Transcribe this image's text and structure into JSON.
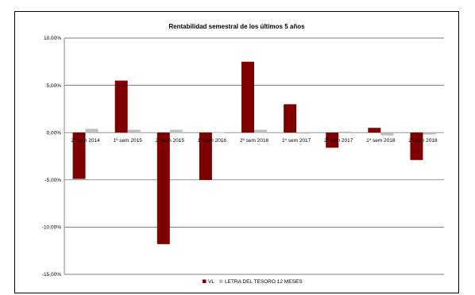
{
  "chart_data": {
    "type": "bar",
    "title": "Rentabilidad semestral de los últimos 5 años",
    "xlabel": "",
    "ylabel": "",
    "ylim": [
      -15,
      10
    ],
    "yticks": [
      10,
      5,
      0,
      -5,
      -10,
      -15
    ],
    "ytick_labels": [
      "10,00%",
      "5,00%",
      "0,00%",
      "-5,00%",
      "-10,00%",
      "-15,00%"
    ],
    "grid": true,
    "legend_position": "bottom",
    "categories": [
      "2º sem 2014",
      "1º sem 2015",
      "2º sem 2015",
      "1º sem 2016",
      "2º sem 2016",
      "1º sem 2017",
      "2º sem 2017",
      "1º sem 2018",
      "2º sem 2018"
    ],
    "series": [
      {
        "name": "VL",
        "color": "#7f0000",
        "values": [
          -4.9,
          5.5,
          -11.8,
          -5.0,
          7.5,
          3.0,
          -1.6,
          0.5,
          -2.9
        ]
      },
      {
        "name": "LETRA DEL TESORO 12 MESES",
        "color": "#bfbfbf",
        "values": [
          0.4,
          0.3,
          0.3,
          0.05,
          0.3,
          -0.1,
          0.1,
          -0.3,
          -0.2
        ]
      }
    ]
  }
}
